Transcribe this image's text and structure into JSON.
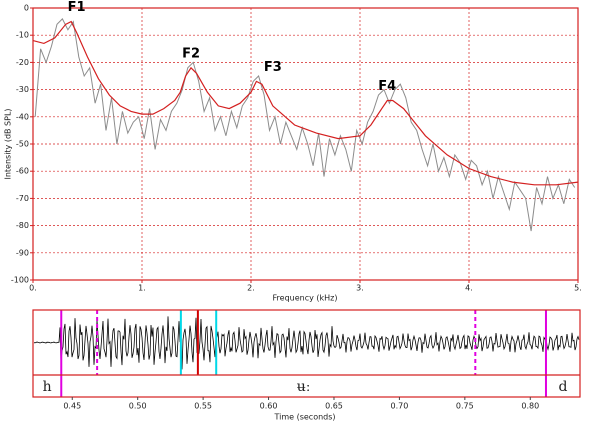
{
  "chart_data": [
    {
      "type": "line",
      "xlabel": "Frequency (kHz)",
      "ylabel": "Intensity (dB SPL)",
      "xlim": [
        0,
        5
      ],
      "ylim": [
        -100,
        0
      ],
      "xticks": [
        {
          "value": 0,
          "label": "0."
        },
        {
          "value": 1,
          "label": "1."
        },
        {
          "value": 2,
          "label": "2."
        },
        {
          "value": 3,
          "label": "3."
        },
        {
          "value": 4,
          "label": "4."
        },
        {
          "value": 5,
          "label": "5."
        }
      ],
      "yticks": [
        0,
        -10,
        -20,
        -30,
        -40,
        -50,
        -60,
        -70,
        -80,
        -90,
        -100
      ],
      "grid": true,
      "series": [
        {
          "name": "spectrum",
          "color": "#8c8c8c",
          "x": [
            0.02,
            0.07,
            0.12,
            0.17,
            0.22,
            0.27,
            0.32,
            0.37,
            0.42,
            0.47,
            0.52,
            0.57,
            0.62,
            0.67,
            0.72,
            0.77,
            0.82,
            0.87,
            0.92,
            0.97,
            1.02,
            1.07,
            1.12,
            1.17,
            1.22,
            1.27,
            1.32,
            1.37,
            1.42,
            1.47,
            1.52,
            1.57,
            1.62,
            1.67,
            1.72,
            1.77,
            1.82,
            1.87,
            1.92,
            1.97,
            2.02,
            2.07,
            2.12,
            2.17,
            2.22,
            2.27,
            2.32,
            2.37,
            2.42,
            2.47,
            2.52,
            2.57,
            2.62,
            2.67,
            2.72,
            2.77,
            2.82,
            2.87,
            2.92,
            2.97,
            3.02,
            3.07,
            3.12,
            3.17,
            3.22,
            3.27,
            3.32,
            3.37,
            3.42,
            3.47,
            3.52,
            3.57,
            3.62,
            3.67,
            3.72,
            3.77,
            3.82,
            3.87,
            3.92,
            3.97,
            4.02,
            4.07,
            4.12,
            4.17,
            4.22,
            4.27,
            4.32,
            4.37,
            4.42,
            4.47,
            4.52,
            4.57,
            4.62,
            4.67,
            4.72,
            4.77,
            4.82,
            4.87,
            4.92,
            4.97
          ],
          "values": [
            -40,
            -15,
            -20,
            -14,
            -6,
            -4,
            -8,
            -5,
            -18,
            -25,
            -22,
            -35,
            -28,
            -45,
            -33,
            -50,
            -38,
            -46,
            -42,
            -40,
            -48,
            -37,
            -52,
            -41,
            -45,
            -38,
            -35,
            -30,
            -22,
            -20,
            -27,
            -38,
            -33,
            -45,
            -40,
            -47,
            -38,
            -44,
            -36,
            -33,
            -27,
            -25,
            -32,
            -45,
            -40,
            -50,
            -42,
            -47,
            -52,
            -44,
            -50,
            -58,
            -46,
            -62,
            -48,
            -54,
            -47,
            -52,
            -60,
            -45,
            -50,
            -42,
            -38,
            -32,
            -30,
            -35,
            -30,
            -28,
            -33,
            -42,
            -45,
            -52,
            -58,
            -50,
            -60,
            -55,
            -62,
            -54,
            -57,
            -63,
            -56,
            -58,
            -65,
            -60,
            -70,
            -62,
            -68,
            -74,
            -64,
            -67,
            -70,
            -82,
            -66,
            -72,
            -62,
            -70,
            -65,
            -72,
            -63,
            -66
          ]
        },
        {
          "name": "envelope",
          "color": "#d42020",
          "x": [
            0,
            0.1,
            0.2,
            0.3,
            0.35,
            0.4,
            0.5,
            0.6,
            0.7,
            0.8,
            0.9,
            1.0,
            1.1,
            1.2,
            1.3,
            1.35,
            1.4,
            1.45,
            1.5,
            1.6,
            1.7,
            1.8,
            1.9,
            2.0,
            2.05,
            2.1,
            2.2,
            2.4,
            2.6,
            2.8,
            3.0,
            3.1,
            3.2,
            3.25,
            3.3,
            3.4,
            3.6,
            3.8,
            4.0,
            4.2,
            4.4,
            4.6,
            4.8,
            5.0
          ],
          "values": [
            -12,
            -13,
            -11,
            -6,
            -5,
            -9,
            -18,
            -26,
            -32,
            -36,
            -38,
            -39,
            -39,
            -37,
            -34,
            -31,
            -25,
            -22,
            -24,
            -31,
            -36,
            -37,
            -35,
            -31,
            -27,
            -28,
            -36,
            -43,
            -46,
            -48,
            -47,
            -43,
            -37,
            -34,
            -34,
            -37,
            -47,
            -54,
            -59,
            -62,
            -64,
            -65,
            -65,
            -64
          ]
        }
      ],
      "annotations": [
        {
          "text": "F1",
          "x": 0.4,
          "y": -5
        },
        {
          "text": "F2",
          "x": 1.45,
          "y": -22
        },
        {
          "text": "F3",
          "x": 2.2,
          "y": -27
        },
        {
          "text": "F4",
          "x": 3.25,
          "y": -34
        }
      ]
    },
    {
      "type": "waveform",
      "xlabel": "Time (seconds)",
      "xlim": [
        0.42,
        0.838
      ],
      "xticks": [
        0.45,
        {
          "value": 0.5,
          "label": "0.50"
        },
        0.55,
        {
          "value": 0.6,
          "label": "0.60"
        },
        0.65,
        {
          "value": 0.7,
          "label": "0.70"
        },
        0.75,
        {
          "value": 0.8,
          "label": "0.80"
        }
      ],
      "markers": [
        {
          "x": 0.4416,
          "color": "#e000e0",
          "dashed": false,
          "full": true
        },
        {
          "x": 0.469,
          "color": "#e000e0",
          "dashed": true,
          "full": false
        },
        {
          "x": 0.533,
          "color": "#00d8e8",
          "dashed": false,
          "full": false
        },
        {
          "x": 0.546,
          "color": "#d00000",
          "dashed": false,
          "full": false
        },
        {
          "x": 0.56,
          "color": "#00d8e8",
          "dashed": false,
          "full": false
        },
        {
          "x": 0.758,
          "color": "#e000e0",
          "dashed": true,
          "full": false
        },
        {
          "x": 0.812,
          "color": "#e000e0",
          "dashed": false,
          "full": true
        }
      ],
      "segments": [
        {
          "label": "h",
          "start": 0.42,
          "end": 0.4416
        },
        {
          "label": "ʉː",
          "start": 0.4416,
          "end": 0.812
        },
        {
          "label": "d",
          "start": 0.812,
          "end": 0.838
        }
      ]
    }
  ]
}
